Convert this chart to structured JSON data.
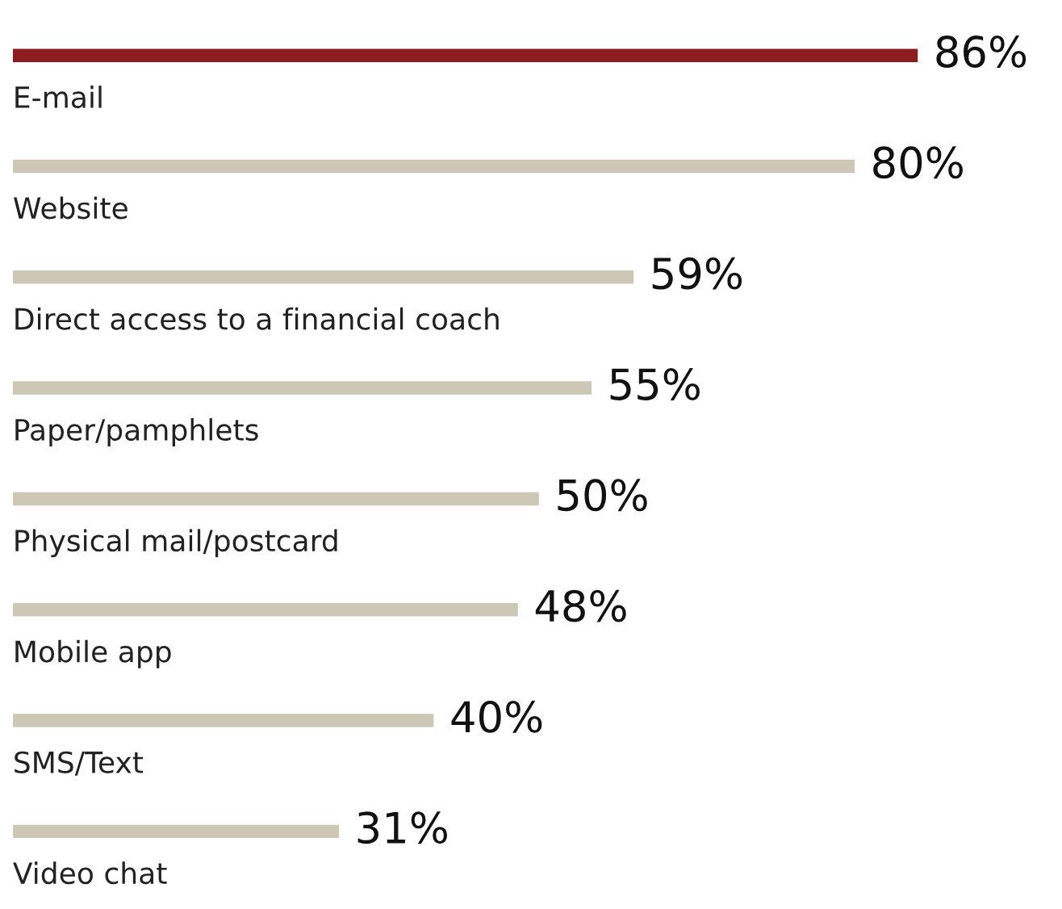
{
  "chart_data": {
    "type": "bar",
    "orientation": "horizontal",
    "categories": [
      "E-mail",
      "Website",
      "Direct access to a financial coach",
      "Paper/pamphlets",
      "Physical mail/postcard",
      "Mobile app",
      "SMS/Text",
      "Video chat"
    ],
    "values": [
      86,
      80,
      59,
      55,
      50,
      48,
      40,
      31
    ],
    "colors": [
      "#8b1c1f",
      "#cdc8b6",
      "#cdc8b6",
      "#cdc8b6",
      "#cdc8b6",
      "#cdc8b6",
      "#cdc8b6",
      "#cdc8b6"
    ],
    "value_labels": [
      "86%",
      "80%",
      "59%",
      "55%",
      "50%",
      "48%",
      "40%",
      "31%"
    ]
  }
}
